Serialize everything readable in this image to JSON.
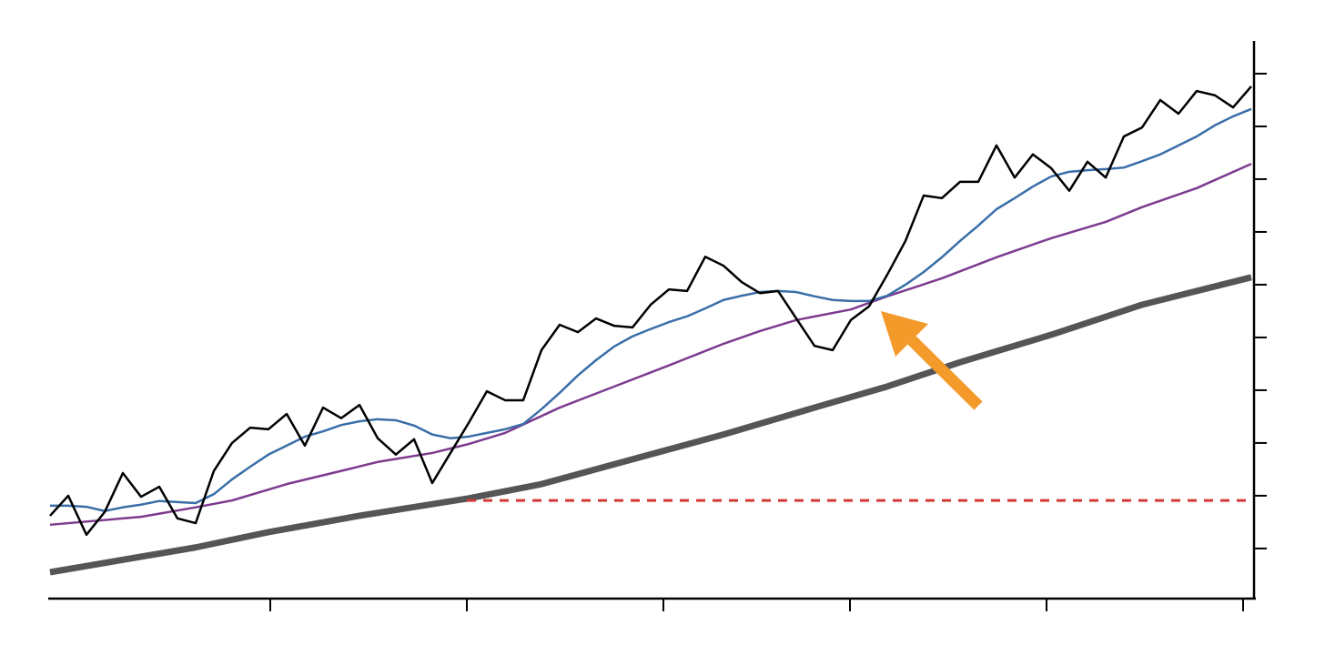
{
  "chart_data": {
    "type": "line",
    "xlim": [
      -0.1,
      66.15
    ],
    "xticks": [
      12.1,
      22.9,
      33.7,
      43.95,
      54.75,
      65.55
    ],
    "ylim": [
      0.05,
      10.62
    ],
    "yticks": [
      1,
      2,
      3,
      4,
      5,
      6,
      7,
      8,
      9,
      10
    ],
    "grid": false,
    "x": [
      0,
      1,
      2,
      3,
      4,
      5,
      6,
      7,
      8,
      9,
      10,
      11,
      12,
      13,
      14,
      15,
      16,
      17,
      18,
      19,
      20,
      21,
      22,
      23,
      24,
      25,
      26,
      27,
      28,
      29,
      30,
      31,
      32,
      33,
      34,
      35,
      36,
      37,
      38,
      39,
      40,
      41,
      42,
      43,
      44,
      45,
      46,
      47,
      48,
      49,
      50,
      51,
      52,
      53,
      54,
      55,
      56,
      57,
      58,
      59,
      60,
      61,
      62,
      63,
      64,
      65,
      66
    ],
    "series": [
      {
        "color": "#555555",
        "style": "solid",
        "width": 7,
        "x": [
          0,
          8,
          12,
          17,
          23,
          27,
          32,
          37,
          42,
          46,
          50,
          55,
          60,
          66
        ],
        "values": [
          0.55,
          1.02,
          1.31,
          1.62,
          1.95,
          2.22,
          2.69,
          3.16,
          3.67,
          4.07,
          4.53,
          5.05,
          5.62,
          6.14
        ]
      },
      {
        "color": "#d33a36",
        "style": "dashed",
        "width": 3,
        "x": [
          22.9,
          66.15
        ],
        "values": [
          1.91,
          1.91
        ]
      },
      {
        "color": "#7d3b8f",
        "style": "solid",
        "width": 2.5,
        "x": [
          0,
          5,
          8,
          10,
          13,
          16,
          18,
          21,
          23,
          25,
          28,
          31,
          34,
          37,
          39,
          41,
          44,
          46,
          49,
          52,
          55,
          58,
          60,
          63,
          66
        ],
        "values": [
          1.45,
          1.6,
          1.78,
          1.91,
          2.22,
          2.47,
          2.64,
          2.81,
          2.98,
          3.19,
          3.67,
          4.07,
          4.47,
          4.88,
          5.12,
          5.33,
          5.53,
          5.78,
          6.12,
          6.52,
          6.88,
          7.19,
          7.47,
          7.83,
          8.29
        ]
      },
      {
        "color": "#3a6ea8",
        "style": "solid",
        "width": 2.5,
        "values": [
          1.81,
          1.81,
          1.79,
          1.71,
          1.78,
          1.83,
          1.9,
          1.88,
          1.86,
          2.03,
          2.31,
          2.55,
          2.78,
          2.95,
          3.12,
          3.22,
          3.34,
          3.41,
          3.45,
          3.43,
          3.33,
          3.16,
          3.09,
          3.12,
          3.19,
          3.26,
          3.36,
          3.64,
          3.95,
          4.28,
          4.57,
          4.83,
          5.02,
          5.16,
          5.29,
          5.4,
          5.55,
          5.71,
          5.79,
          5.86,
          5.88,
          5.86,
          5.78,
          5.71,
          5.69,
          5.69,
          5.79,
          6.0,
          6.24,
          6.52,
          6.83,
          7.12,
          7.43,
          7.64,
          7.86,
          8.05,
          8.14,
          8.17,
          8.19,
          8.22,
          8.34,
          8.47,
          8.64,
          8.81,
          9.02,
          9.19,
          9.33
        ]
      },
      {
        "color": "#000000",
        "style": "solid",
        "width": 2.5,
        "values": [
          1.62,
          2.0,
          1.26,
          1.69,
          2.43,
          1.98,
          2.17,
          1.57,
          1.48,
          2.47,
          3.0,
          3.29,
          3.26,
          3.55,
          2.95,
          3.67,
          3.47,
          3.72,
          3.09,
          2.78,
          3.07,
          2.24,
          2.81,
          3.38,
          3.98,
          3.81,
          3.81,
          4.76,
          5.24,
          5.1,
          5.36,
          5.22,
          5.19,
          5.62,
          5.91,
          5.88,
          6.53,
          6.36,
          6.05,
          5.84,
          5.88,
          5.36,
          4.84,
          4.76,
          5.33,
          5.59,
          6.19,
          6.83,
          7.69,
          7.64,
          7.95,
          7.95,
          8.64,
          8.03,
          8.47,
          8.21,
          7.78,
          8.33,
          8.03,
          8.81,
          8.98,
          9.5,
          9.24,
          9.67,
          9.59,
          9.36,
          9.76
        ]
      }
    ]
  }
}
